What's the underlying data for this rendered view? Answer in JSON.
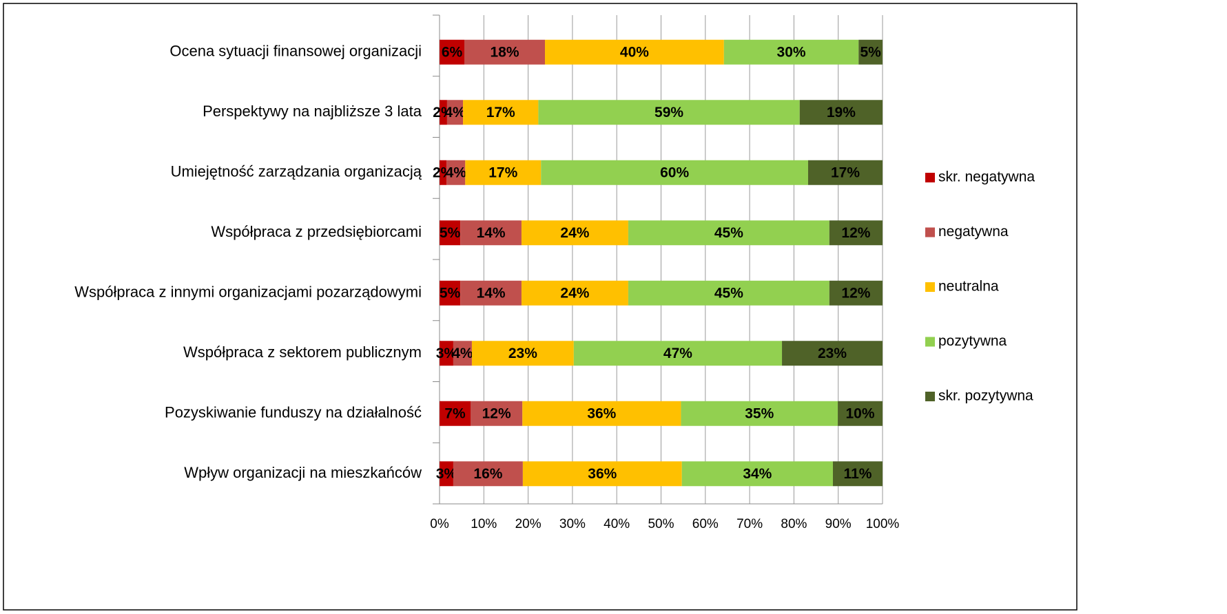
{
  "chart_data": {
    "type": "stacked-bar-horizontal",
    "categories": [
      "Ocena sytuacji finansowej organizacji",
      "Perspektywy na najbliższe 3 lata",
      "Umiejętność zarządzania organizacją",
      "Współpraca z przedsiębiorcami",
      "Współpraca z innymi organizacjami pozarządowymi",
      "Współpraca z sektorem publicznym",
      "Pozyskiwanie funduszy na działalność",
      "Wpływ organizacji na mieszkańców"
    ],
    "series": [
      {
        "name": "skr. negatywna",
        "color": "#c00000",
        "values": [
          5.6,
          1.7,
          1.6,
          4.7,
          4.7,
          3.1,
          7.0,
          3.1
        ],
        "value_labels": [
          "6%",
          "2%",
          "2%",
          "5%",
          "5%",
          "3%",
          "7%",
          "3%"
        ]
      },
      {
        "name": "negatywna",
        "color": "#c0504d",
        "values": [
          18.2,
          3.6,
          4.2,
          13.8,
          13.8,
          4.2,
          11.7,
          15.7
        ],
        "value_labels": [
          "18%",
          "4%",
          "4%",
          "14%",
          "14%",
          "4%",
          "12%",
          "16%"
        ]
      },
      {
        "name": "neutralna",
        "color": "#ffc000",
        "values": [
          40.4,
          17.0,
          17.1,
          24.1,
          24.1,
          23.0,
          35.8,
          35.9
        ],
        "value_labels": [
          "40%",
          "17%",
          "17%",
          "24%",
          "24%",
          "23%",
          "36%",
          "36%"
        ]
      },
      {
        "name": "pozytywna",
        "color": "#92d050",
        "values": [
          30.4,
          59.0,
          60.3,
          45.4,
          45.4,
          47.0,
          35.4,
          34.1
        ],
        "value_labels": [
          "30%",
          "59%",
          "60%",
          "45%",
          "45%",
          "47%",
          "35%",
          "34%"
        ]
      },
      {
        "name": "skr. pozytywna",
        "color": "#4f6228",
        "values": [
          5.4,
          18.7,
          16.8,
          12.0,
          12.0,
          22.7,
          10.1,
          11.2
        ],
        "value_labels": [
          "5%",
          "19%",
          "17%",
          "12%",
          "12%",
          "23%",
          "10%",
          "11%"
        ]
      }
    ],
    "xlim": [
      0,
      100
    ],
    "xticks": [
      {
        "value": 0,
        "label": "0%"
      },
      {
        "value": 10,
        "label": "10%"
      },
      {
        "value": 20,
        "label": "20%"
      },
      {
        "value": 30,
        "label": "30%"
      },
      {
        "value": 40,
        "label": "40%"
      },
      {
        "value": 50,
        "label": "50%"
      },
      {
        "value": 60,
        "label": "60%"
      },
      {
        "value": 70,
        "label": "70%"
      },
      {
        "value": 80,
        "label": "80%"
      },
      {
        "value": 90,
        "label": "90%"
      },
      {
        "value": 100,
        "label": "100%"
      }
    ],
    "grid": true,
    "legend": "right"
  }
}
